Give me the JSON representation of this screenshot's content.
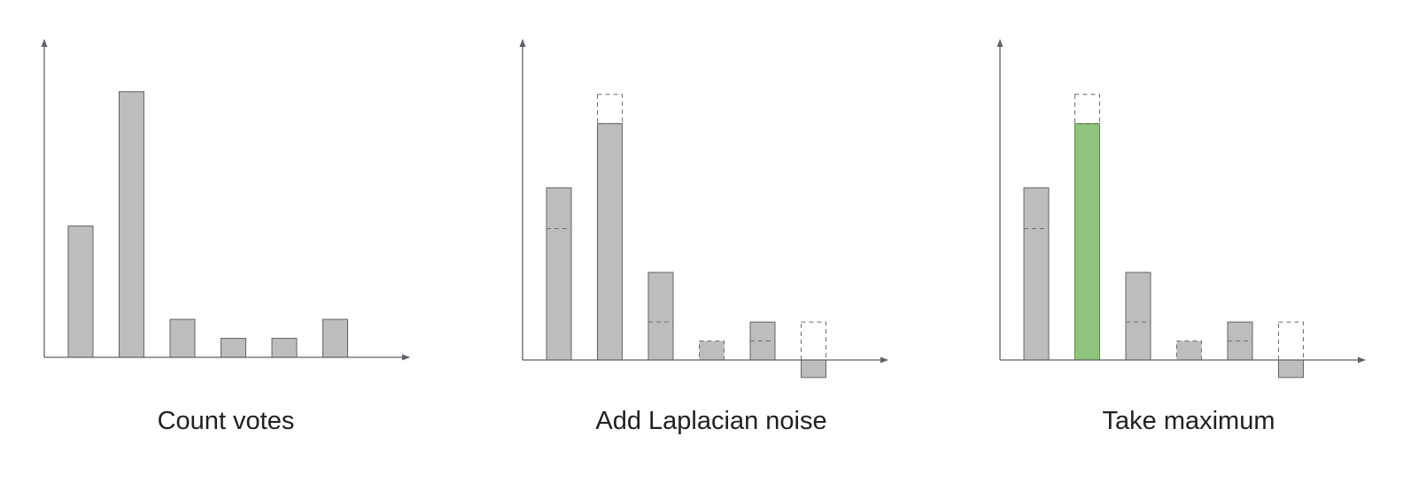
{
  "colors": {
    "axis": "#5f6368",
    "bar_fill": "#bdbdbd",
    "bar_stroke": "#5f6368",
    "winner_fill": "#8fc47c",
    "winner_stroke": "#5a8a48",
    "dashed": "#6f6f6f"
  },
  "panels": [
    {
      "id": "count-votes",
      "caption": "Count votes",
      "bars": [
        {
          "original": 4.5,
          "noisy": null
        },
        {
          "original": 9.1,
          "noisy": null
        },
        {
          "original": 1.3,
          "noisy": null
        },
        {
          "original": 0.65,
          "noisy": null
        },
        {
          "original": 0.65,
          "noisy": null
        },
        {
          "original": 1.3,
          "noisy": null
        }
      ]
    },
    {
      "id": "add-laplacian-noise",
      "caption": "Add Laplacian noise",
      "bars": [
        {
          "original": 4.5,
          "noisy": 5.9
        },
        {
          "original": 9.1,
          "noisy": 8.1
        },
        {
          "original": 1.3,
          "noisy": 3.0
        },
        {
          "original": 0.65,
          "noisy": 0.65
        },
        {
          "original": 0.65,
          "noisy": 1.3
        },
        {
          "original": 1.3,
          "noisy": -0.6
        }
      ]
    },
    {
      "id": "take-maximum",
      "caption": "Take maximum",
      "winner_index": 1,
      "bars": [
        {
          "original": 4.5,
          "noisy": 5.9
        },
        {
          "original": 9.1,
          "noisy": 8.1
        },
        {
          "original": 1.3,
          "noisy": 3.0
        },
        {
          "original": 0.65,
          "noisy": 0.65
        },
        {
          "original": 0.65,
          "noisy": 1.3
        },
        {
          "original": 1.3,
          "noisy": -0.6
        }
      ]
    }
  ]
}
